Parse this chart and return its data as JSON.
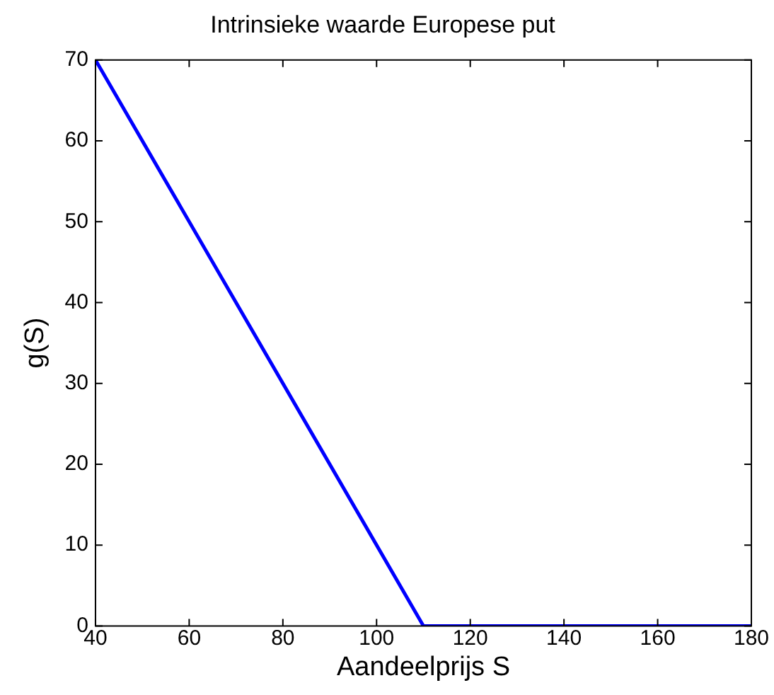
{
  "chart_data": {
    "type": "line",
    "title": "Intrinsieke waarde Europese put",
    "xlabel": "Aandeelprijs S",
    "ylabel": "g(S)",
    "x": [
      40,
      110,
      180
    ],
    "series": [
      {
        "color": "#0000ff",
        "values": [
          70,
          0,
          0
        ]
      }
    ],
    "xlim": [
      40,
      180
    ],
    "xticks": [
      40,
      60,
      80,
      100,
      120,
      140,
      160,
      180
    ],
    "ylim": [
      0,
      70
    ],
    "yticks": [
      0,
      10,
      20,
      30,
      40,
      50,
      60,
      70
    ],
    "grid": false,
    "legend": false,
    "marker": "none",
    "line_style": "solid"
  }
}
